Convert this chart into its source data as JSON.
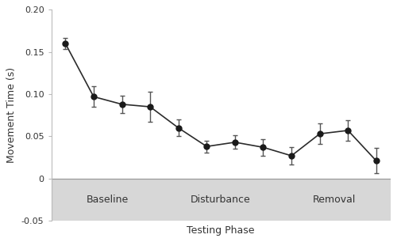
{
  "x": [
    1,
    2,
    3,
    4,
    5,
    6,
    7,
    8,
    9,
    10,
    11,
    12
  ],
  "y": [
    0.16,
    0.097,
    0.088,
    0.085,
    0.06,
    0.038,
    0.043,
    0.037,
    0.027,
    0.053,
    0.057,
    0.021
  ],
  "yerr": [
    0.007,
    0.012,
    0.01,
    0.018,
    0.01,
    0.007,
    0.008,
    0.01,
    0.01,
    0.012,
    0.012,
    0.015
  ],
  "phase_labels": [
    "Baseline",
    "Disturbance",
    "Removal"
  ],
  "phase_centers": [
    2.5,
    6.5,
    10.5
  ],
  "ylabel": "Movement Time (s)",
  "xlabel": "Testing Phase",
  "ylim": [
    -0.05,
    0.2
  ],
  "yticks": [
    -0.05,
    0.0,
    0.05,
    0.1,
    0.15,
    0.2
  ],
  "ytick_labels": [
    "-0.05",
    "0",
    "0.05",
    "0.10",
    "0.15",
    "0.20"
  ],
  "line_color": "#2b2b2b",
  "marker_color": "#1a1a1a",
  "phase_band_color": "#d0d0d0",
  "phase_band_alpha": 0.85,
  "background_color": "#ffffff",
  "marker_size": 5,
  "capsize": 2.5,
  "ecolor": "#555555",
  "elinewidth": 1.0,
  "linewidth": 1.2
}
